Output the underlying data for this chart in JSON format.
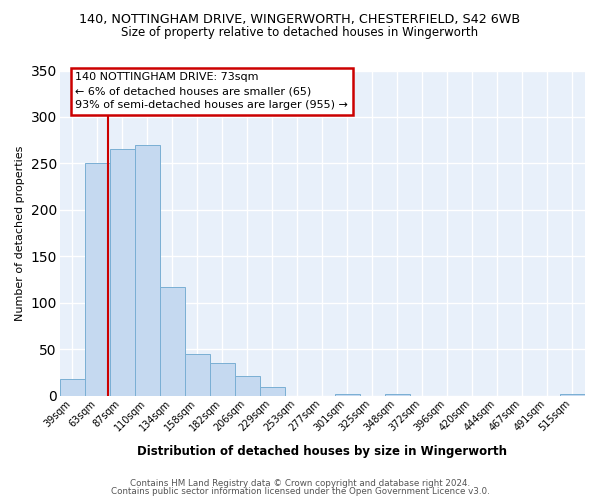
{
  "title1": "140, NOTTINGHAM DRIVE, WINGERWORTH, CHESTERFIELD, S42 6WB",
  "title2": "Size of property relative to detached houses in Wingerworth",
  "xlabel": "Distribution of detached houses by size in Wingerworth",
  "ylabel": "Number of detached properties",
  "bin_labels": [
    "39sqm",
    "63sqm",
    "87sqm",
    "110sqm",
    "134sqm",
    "158sqm",
    "182sqm",
    "206sqm",
    "229sqm",
    "253sqm",
    "277sqm",
    "301sqm",
    "325sqm",
    "348sqm",
    "372sqm",
    "396sqm",
    "420sqm",
    "444sqm",
    "467sqm",
    "491sqm",
    "515sqm"
  ],
  "bar_values": [
    18,
    250,
    265,
    270,
    117,
    45,
    35,
    21,
    9,
    0,
    0,
    2,
    0,
    2,
    0,
    0,
    0,
    0,
    0,
    0,
    2
  ],
  "bar_color": "#c5d9f0",
  "bar_edge_color": "#7aafd4",
  "fig_bg_color": "#ffffff",
  "plot_bg_color": "#e8f0fa",
  "grid_color": "#ffffff",
  "marker_line_color": "#cc0000",
  "annotation_title": "140 NOTTINGHAM DRIVE: 73sqm",
  "annotation_line1": "← 6% of detached houses are smaller (65)",
  "annotation_line2": "93% of semi-detached houses are larger (955) →",
  "annotation_box_color": "#ffffff",
  "annotation_border_color": "#cc0000",
  "ylim": [
    0,
    350
  ],
  "yticks": [
    0,
    50,
    100,
    150,
    200,
    250,
    300,
    350
  ],
  "footnote1": "Contains HM Land Registry data © Crown copyright and database right 2024.",
  "footnote2": "Contains public sector information licensed under the Open Government Licence v3.0."
}
